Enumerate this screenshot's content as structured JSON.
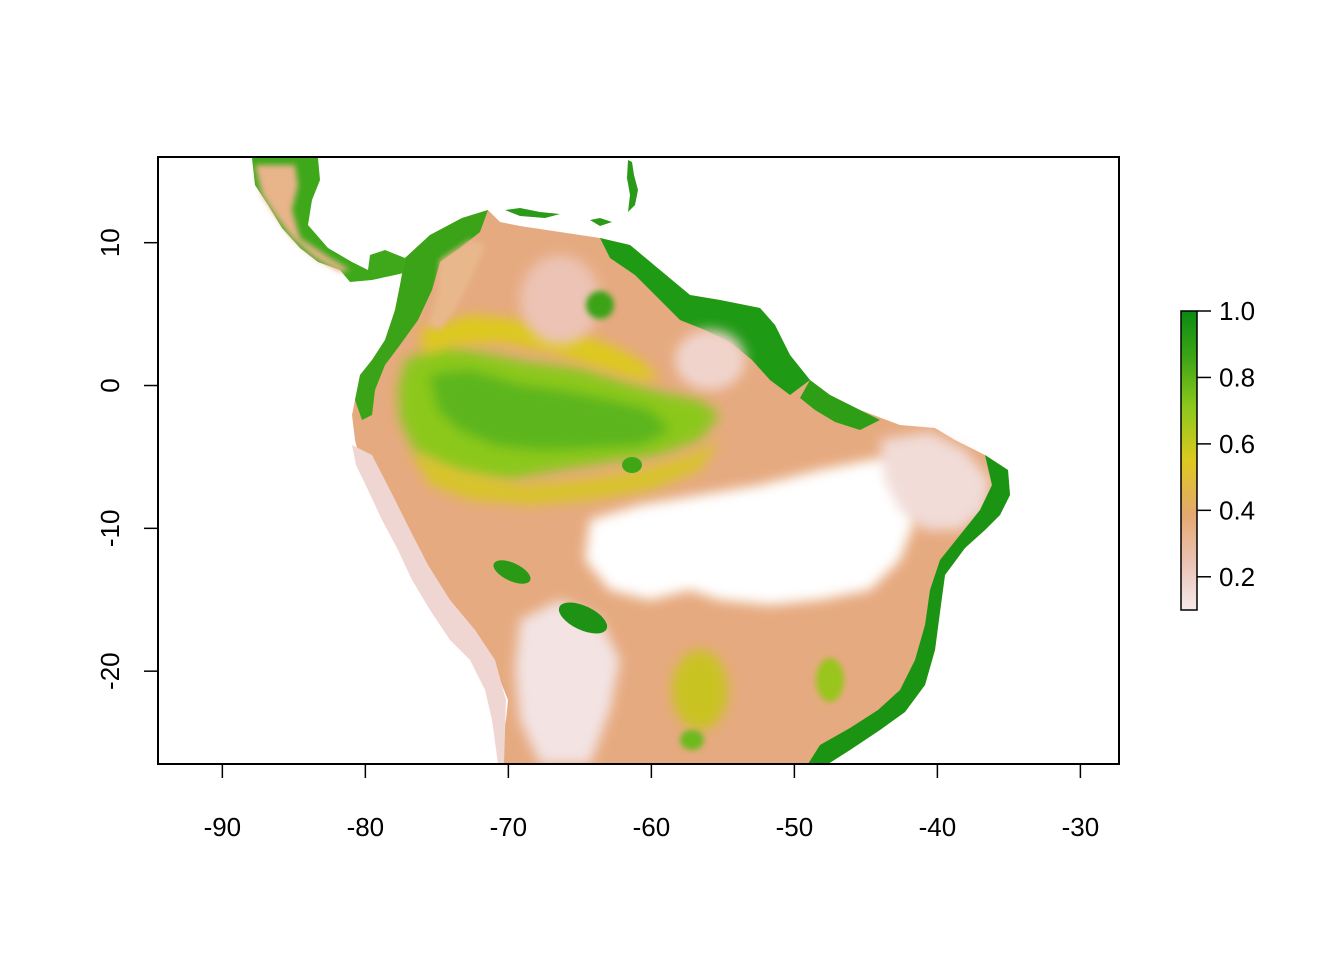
{
  "chart_data": {
    "type": "heatmap",
    "subtype": "raster-map",
    "title": "",
    "xlabel": "",
    "ylabel": "",
    "xlim": [
      -94.5,
      -27.3
    ],
    "ylim": [
      -26.5,
      16
    ],
    "x_ticks": [
      -90,
      -80,
      -70,
      -60,
      -50,
      -40,
      -30
    ],
    "x_tick_labels": [
      "-90",
      "-80",
      "-70",
      "-60",
      "-50",
      "-40",
      "-30"
    ],
    "y_ticks": [
      10,
      0,
      -10,
      -20
    ],
    "y_tick_labels": [
      "10",
      "0",
      "-10",
      "-20"
    ],
    "legend": {
      "placement": "right",
      "range": [
        0.1,
        1.0
      ],
      "ticks": [
        0.2,
        0.4,
        0.6,
        0.8,
        1.0
      ],
      "tick_labels": [
        "0.2",
        "0.4",
        "0.6",
        "0.8",
        "1.0"
      ]
    },
    "colors": {
      "low": "#f3e3e3",
      "mid_low": "#e6aa80",
      "mid": "#dcc91e",
      "mid_high": "#7ec41c",
      "high": "#0a8a12",
      "background": "#ffffff"
    }
  }
}
